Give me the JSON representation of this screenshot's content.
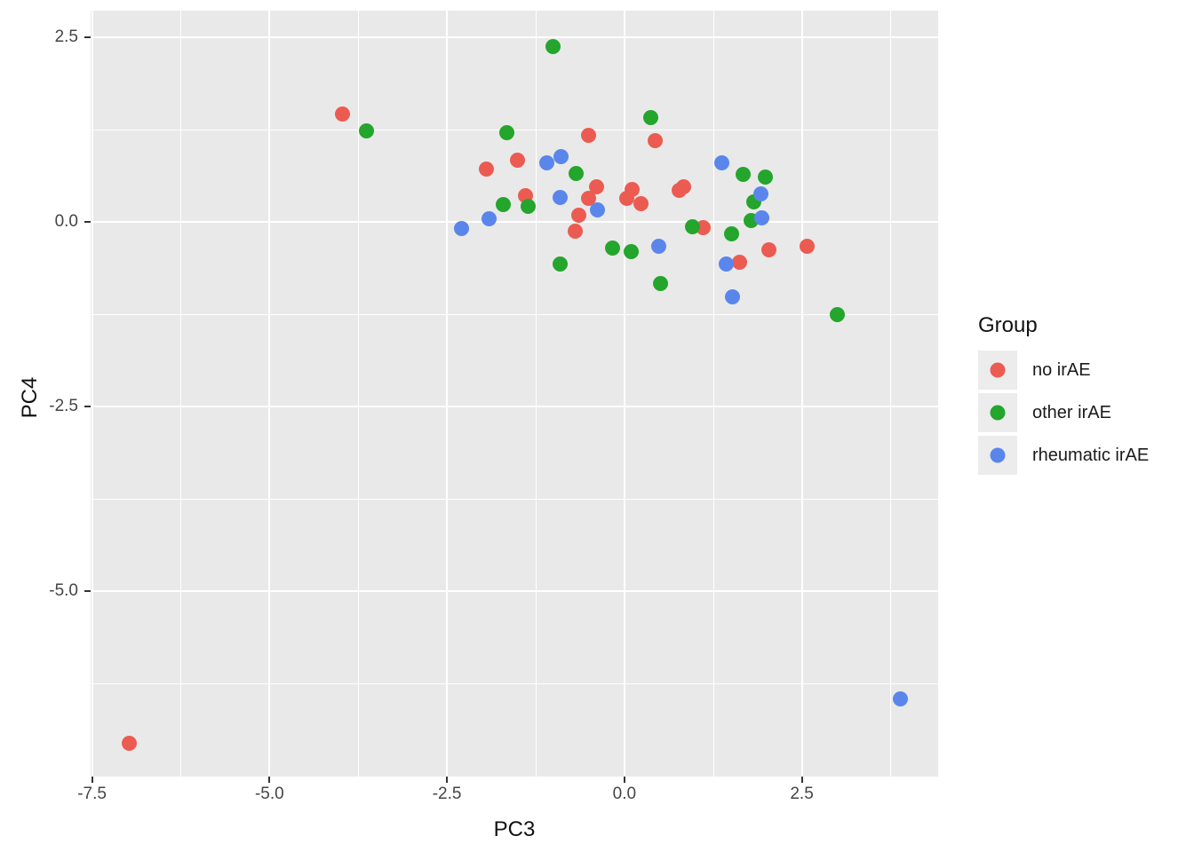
{
  "figure": {
    "x_axis_title": "PC3",
    "y_axis_title": "PC4"
  },
  "legend": {
    "title": "Group",
    "items": [
      {
        "label": "no irAE",
        "color": "#EC5B51"
      },
      {
        "label": "other irAE",
        "color": "#24A52C"
      },
      {
        "label": "rheumatic irAE",
        "color": "#5A86EC"
      }
    ]
  },
  "colors": {
    "panel_background": "#E9E9E9",
    "gridline": "#FFFFFF",
    "tick_text": "#454545",
    "axis_title_text": "#111111",
    "legend_key_background": "#ECECEC",
    "red": "#EC5B51",
    "green": "#24A52C",
    "blue": "#5A86EC"
  },
  "chart_data": {
    "type": "scatter",
    "title": "",
    "xlabel": "PC3",
    "ylabel": "PC4",
    "xlim": [
      -7.52,
      4.42
    ],
    "ylim": [
      -7.51,
      2.86
    ],
    "grid": true,
    "legend_position": "right",
    "x_ticks": [
      -7.5,
      -5.0,
      -2.5,
      0.0,
      2.5
    ],
    "x_tick_labels": [
      "-7.5",
      "-5.0",
      "-2.5",
      "0.0",
      "2.5"
    ],
    "y_ticks": [
      2.5,
      0.0,
      -2.5,
      -5.0
    ],
    "y_tick_labels": [
      "2.5",
      "0.0",
      "-2.5",
      "-5.0"
    ],
    "x_minor_ticks": [
      -6.25,
      -3.75,
      -1.25,
      1.25,
      3.75
    ],
    "y_minor_ticks": [
      1.25,
      -1.25,
      -3.75,
      -6.25
    ],
    "series": [
      {
        "name": "no irAE",
        "color": "#EC5B51",
        "points": [
          [
            -6.98,
            -7.06
          ],
          [
            -3.97,
            1.46
          ],
          [
            -1.94,
            0.72
          ],
          [
            -1.5,
            0.83
          ],
          [
            -1.39,
            0.35
          ],
          [
            -0.69,
            -0.13
          ],
          [
            -0.64,
            0.09
          ],
          [
            -0.5,
            1.17
          ],
          [
            -0.5,
            0.32
          ],
          [
            -0.39,
            0.47
          ],
          [
            0.03,
            0.32
          ],
          [
            0.11,
            0.44
          ],
          [
            0.23,
            0.25
          ],
          [
            0.43,
            1.1
          ],
          [
            0.77,
            0.43
          ],
          [
            0.84,
            0.47
          ],
          [
            1.11,
            -0.08
          ],
          [
            1.62,
            -0.55
          ],
          [
            2.04,
            -0.38
          ],
          [
            2.57,
            -0.33
          ]
        ]
      },
      {
        "name": "other irAE",
        "color": "#24A52C",
        "points": [
          [
            -3.63,
            1.23
          ],
          [
            -1.71,
            0.24
          ],
          [
            -1.66,
            1.21
          ],
          [
            -1.36,
            0.21
          ],
          [
            -1.0,
            2.37
          ],
          [
            -0.91,
            -0.57
          ],
          [
            -0.68,
            0.66
          ],
          [
            -0.17,
            -0.35
          ],
          [
            0.09,
            -0.4
          ],
          [
            0.37,
            1.41
          ],
          [
            0.51,
            -0.83
          ],
          [
            0.96,
            -0.07
          ],
          [
            1.51,
            -0.16
          ],
          [
            1.67,
            0.64
          ],
          [
            1.79,
            0.02
          ],
          [
            1.82,
            0.27
          ],
          [
            1.99,
            0.61
          ],
          [
            3.0,
            -1.25
          ]
        ]
      },
      {
        "name": "rheumatic irAE",
        "color": "#5A86EC",
        "points": [
          [
            -2.3,
            -0.09
          ],
          [
            -1.91,
            0.04
          ],
          [
            -1.09,
            0.8
          ],
          [
            -0.91,
            0.33
          ],
          [
            -0.89,
            0.88
          ],
          [
            -0.38,
            0.16
          ],
          [
            0.49,
            -0.33
          ],
          [
            1.37,
            0.8
          ],
          [
            1.43,
            -0.57
          ],
          [
            1.52,
            -1.01
          ],
          [
            1.92,
            0.38
          ],
          [
            1.93,
            0.06
          ],
          [
            3.89,
            -6.46
          ]
        ]
      }
    ]
  }
}
